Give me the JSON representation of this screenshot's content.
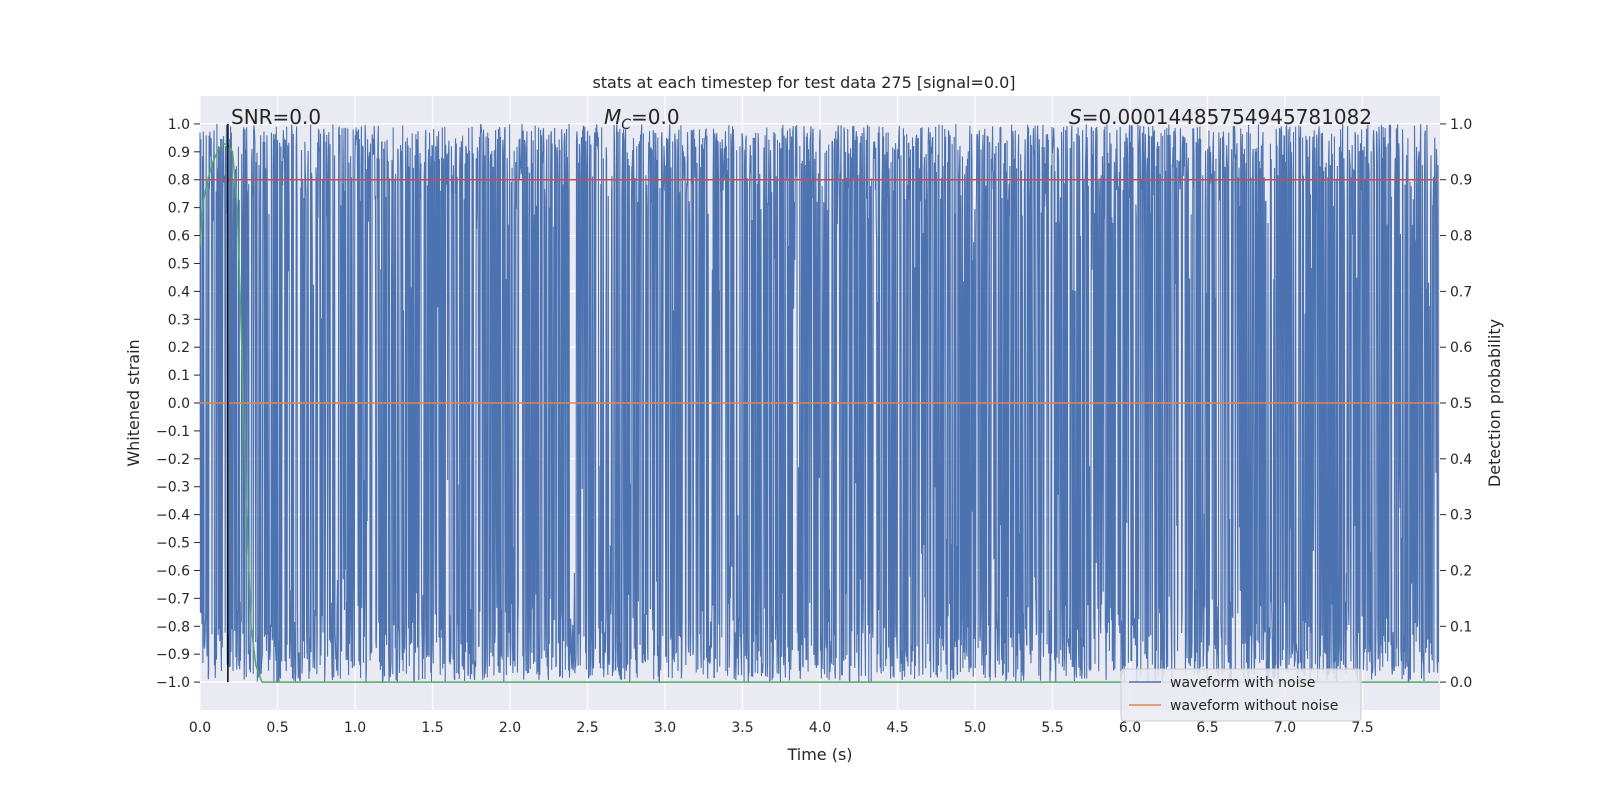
{
  "chart_data": {
    "type": "line",
    "title": "stats at each timestep for test data 275 [signal=0.0]",
    "xlabel": "Time (s)",
    "ylabel_left": "Whitened strain",
    "ylabel_right": "Detection probability",
    "xlim": [
      0.0,
      8.0
    ],
    "ylim_left": [
      -1.1,
      1.1
    ],
    "ylim_right": [
      -0.05,
      1.05
    ],
    "x_ticks": [
      "0.0",
      "0.5",
      "1.0",
      "1.5",
      "2.0",
      "2.5",
      "3.0",
      "3.5",
      "4.0",
      "4.5",
      "5.0",
      "5.5",
      "6.0",
      "6.5",
      "7.0",
      "7.5"
    ],
    "y_ticks_left": [
      "1.0",
      "0.9",
      "0.8",
      "0.7",
      "0.6",
      "0.5",
      "0.4",
      "0.3",
      "0.2",
      "0.1",
      "0.0",
      "−0.1",
      "−0.2",
      "−0.3",
      "−0.4",
      "−0.5",
      "−0.6",
      "−0.7",
      "−0.8",
      "−0.9",
      "−1.0"
    ],
    "y_ticks_right": [
      "1.0",
      "0.9",
      "0.8",
      "0.7",
      "0.6",
      "0.5",
      "0.4",
      "0.3",
      "0.2",
      "0.1",
      "0.0"
    ],
    "grid": true,
    "legend_position": "bottom-right",
    "annotations": {
      "snr": "SNR=0.0",
      "mc_symbol": "M",
      "mc_sub": "C",
      "mc_value": "=0.0",
      "s_symbol": "S",
      "s_value": "=0.00014485754945781082"
    },
    "series": [
      {
        "name": "waveform with noise",
        "color": "#4c72b0",
        "axis": "left",
        "description": "dense noise filling roughly -1.0 to 1.0 over 0-8 s"
      },
      {
        "name": "waveform without noise",
        "color": "#dd8452",
        "axis": "left",
        "value": 0.0
      },
      {
        "axis": "right",
        "color": "#55a868",
        "x": [
          0.0,
          0.02,
          0.05,
          0.08,
          0.12,
          0.15,
          0.18,
          0.21,
          0.24,
          0.27,
          0.3,
          0.33,
          0.36,
          0.4,
          0.5,
          1.0,
          2.0,
          4.0,
          6.0,
          7.99
        ],
        "values": [
          0.78,
          0.86,
          0.9,
          0.93,
          0.955,
          0.965,
          0.962,
          0.95,
          0.85,
          0.6,
          0.3,
          0.1,
          0.03,
          0.0,
          0.0,
          0.0,
          0.0,
          0.0,
          0.0,
          0.0
        ]
      },
      {
        "axis": "right",
        "color": "#c44e52",
        "value": 0.9
      }
    ],
    "vline_x": 0.18,
    "vline_color": "#000000"
  }
}
